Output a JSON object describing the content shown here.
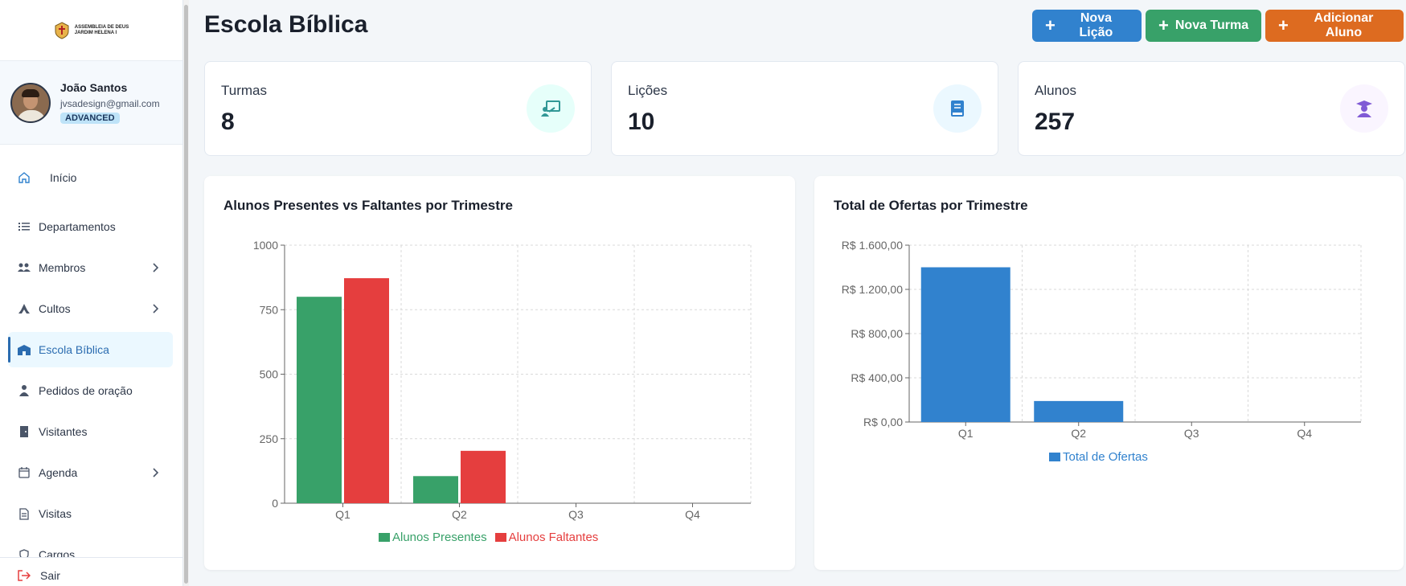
{
  "logo": {
    "line1": "ASSEMBLEIA DE DEUS",
    "line2": "JARDIM HELENA I"
  },
  "user": {
    "name": "João Santos",
    "email": "jvsadesign@gmail.com",
    "plan": "ADVANCED"
  },
  "nav": [
    {
      "label": "Início",
      "icon": "home-icon"
    },
    {
      "label": "Departamentos",
      "icon": "list-icon"
    },
    {
      "label": "Membros",
      "icon": "users-icon"
    },
    {
      "label": "Cultos",
      "icon": "praying-hands-icon"
    },
    {
      "label": "Escola Bíblica",
      "icon": "school-icon"
    },
    {
      "label": "Pedidos de oração",
      "icon": "prayer-icon"
    },
    {
      "label": "Visitantes",
      "icon": "door-icon"
    },
    {
      "label": "Agenda",
      "icon": "calendar-icon"
    },
    {
      "label": "Visitas",
      "icon": "document-icon"
    },
    {
      "label": "Cargos",
      "icon": "shield-icon"
    }
  ],
  "logout": "Sair",
  "page": {
    "title": "Escola Bíblica",
    "buttons": {
      "new_lesson": "Nova Lição",
      "new_class": "Nova Turma",
      "add_student": "Adicionar Aluno"
    }
  },
  "stats": [
    {
      "label": "Turmas",
      "value": "8",
      "color": "#319795"
    },
    {
      "label": "Lições",
      "value": "10",
      "color": "#3182ce"
    },
    {
      "label": "Alunos",
      "value": "257",
      "color": "#805ad5"
    }
  ],
  "chart_data": [
    {
      "type": "bar",
      "title": "Alunos Presentes vs Faltantes por Trimestre",
      "categories": [
        "Q1",
        "Q2",
        "Q3",
        "Q4"
      ],
      "series": [
        {
          "name": "Alunos Presentes",
          "values": [
            800,
            105,
            0,
            0
          ],
          "color": "#38a169"
        },
        {
          "name": "Alunos Faltantes",
          "values": [
            872,
            203,
            0,
            0
          ],
          "color": "#e53e3e"
        }
      ],
      "yticks": [
        "0",
        "250",
        "500",
        "750",
        "1000"
      ],
      "ytick_values": [
        0,
        250,
        500,
        750,
        1000
      ],
      "ylim": [
        0,
        1000
      ],
      "grid": true,
      "legend": "bottom"
    },
    {
      "type": "bar",
      "title": "Total de Ofertas por Trimestre",
      "categories": [
        "Q1",
        "Q2",
        "Q3",
        "Q4"
      ],
      "series": [
        {
          "name": "Total de Ofertas",
          "values": [
            1400,
            190,
            0,
            0
          ],
          "color": "#3182ce"
        }
      ],
      "yticks": [
        "R$ 0,00",
        "R$ 400,00",
        "R$ 800,00",
        "R$ 1.200,00",
        "R$ 1.600,00"
      ],
      "ytick_values": [
        0,
        400,
        800,
        1200,
        1600
      ],
      "ylim": [
        0,
        1600
      ],
      "grid": true,
      "legend": "bottom"
    }
  ]
}
